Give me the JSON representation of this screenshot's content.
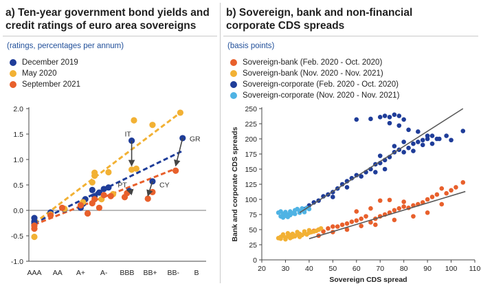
{
  "panel_a": {
    "title": "a) Ten-year government bond yields and\ncredit ratings of euro area sovereigns",
    "subtitle": "(ratings, percentages per annum)"
  },
  "panel_b": {
    "title": "b) Sovereign, bank and non-financial\ncorporate CDS spreads",
    "subtitle": "(basis points)"
  },
  "chart_data": [
    {
      "type": "scatter",
      "title": "a) Ten-year government bond yields and credit ratings of euro area sovereigns",
      "subtitle": "(ratings, percentages per annum)",
      "xlabel": "",
      "ylabel": "",
      "categories": [
        "AAA",
        "AA",
        "A+",
        "A-",
        "BBB",
        "BB+",
        "BB-",
        "B"
      ],
      "x_positions": [
        0,
        1,
        2,
        3,
        4,
        5,
        6,
        7
      ],
      "ylim": [
        -1.0,
        2.0
      ],
      "yticks": [
        -1.0,
        -0.5,
        0.0,
        0.5,
        1.0,
        1.5,
        2.0
      ],
      "legend_position": "top-left",
      "grid": false,
      "series": [
        {
          "name": "December 2019",
          "color": "#1f3d99",
          "points": [
            [
              0,
              -0.15
            ],
            [
              0,
              -0.22
            ],
            [
              0,
              -0.26
            ],
            [
              0.7,
              -0.04
            ],
            [
              0.7,
              -0.06
            ],
            [
              1.3,
              0.02
            ],
            [
              2,
              0.05
            ],
            [
              2.1,
              0.13
            ],
            [
              2.2,
              0.22
            ],
            [
              2.5,
              0.4
            ],
            [
              2.6,
              0.28
            ],
            [
              2.8,
              0.35
            ],
            [
              3.0,
              0.42
            ],
            [
              3.2,
              0.45
            ],
            [
              4.1,
              0.38
            ],
            [
              4.2,
              1.37
            ],
            [
              5.1,
              0.57
            ],
            [
              6.4,
              1.42
            ]
          ],
          "trend": {
            "x": [
              0,
              6.4
            ],
            "y": [
              -0.25,
              1.17
            ]
          }
        },
        {
          "name": "May 2020",
          "color": "#f2b134",
          "points": [
            [
              0,
              -0.52
            ],
            [
              0,
              -0.3
            ],
            [
              0.7,
              -0.08
            ],
            [
              1.3,
              0.03
            ],
            [
              2.1,
              0.16
            ],
            [
              2.5,
              0.55
            ],
            [
              2.6,
              0.68
            ],
            [
              2.6,
              0.74
            ],
            [
              2.9,
              0.22
            ],
            [
              3.2,
              0.75
            ],
            [
              3.4,
              0.32
            ],
            [
              4.2,
              0.8
            ],
            [
              4.3,
              1.77
            ],
            [
              4.4,
              0.82
            ],
            [
              5.1,
              1.68
            ],
            [
              6.3,
              1.92
            ]
          ],
          "trend": {
            "x": [
              0,
              6.3
            ],
            "y": [
              -0.25,
              1.92
            ]
          }
        },
        {
          "name": "September 2021",
          "color": "#e8602c",
          "points": [
            [
              0,
              -0.3
            ],
            [
              0,
              -0.36
            ],
            [
              0.7,
              -0.1
            ],
            [
              1.2,
              0.05
            ],
            [
              2.0,
              0.1
            ],
            [
              2.3,
              -0.06
            ],
            [
              2.5,
              0.14
            ],
            [
              2.6,
              0.22
            ],
            [
              2.8,
              0.05
            ],
            [
              3.0,
              0.3
            ],
            [
              3.3,
              0.28
            ],
            [
              3.9,
              0.26
            ],
            [
              4.0,
              0.34
            ],
            [
              4.9,
              0.23
            ],
            [
              5.1,
              0.36
            ],
            [
              6.1,
              0.78
            ]
          ],
          "trend": {
            "x": [
              0,
              6.1
            ],
            "y": [
              -0.28,
              0.82
            ]
          }
        }
      ],
      "annotations": [
        {
          "text": "IT",
          "x": 3.9,
          "y": 1.45
        },
        {
          "text": "GR",
          "x": 6.7,
          "y": 1.36
        },
        {
          "text": "PT",
          "x": 3.6,
          "y": 0.45
        },
        {
          "text": "CY",
          "x": 5.4,
          "y": 0.45
        }
      ],
      "arrows": [
        {
          "from": [
            4.2,
            1.37
          ],
          "to": [
            4.2,
            0.82
          ]
        },
        {
          "from": [
            6.4,
            1.42
          ],
          "to": [
            6.1,
            0.82
          ]
        },
        {
          "from": [
            4.1,
            0.38
          ],
          "to": [
            4.0,
            0.34
          ]
        },
        {
          "from": [
            5.1,
            0.57
          ],
          "to": [
            4.9,
            0.23
          ]
        }
      ]
    },
    {
      "type": "scatter",
      "title": "b) Sovereign, bank and non-financial corporate CDS spreads",
      "subtitle": "(basis points)",
      "xlabel": "Sovereign CDS spread",
      "ylabel": "Bank and corporate CDS spreads",
      "xlim": [
        20,
        110
      ],
      "ylim": [
        0,
        250
      ],
      "xticks": [
        20,
        30,
        40,
        50,
        60,
        70,
        80,
        90,
        100,
        110
      ],
      "yticks": [
        0,
        25,
        50,
        75,
        100,
        125,
        150,
        175,
        200,
        225,
        250
      ],
      "legend_position": "top-left",
      "grid": false,
      "series": [
        {
          "name": "Sovereign-bank (Feb. 2020 - Oct. 2020)",
          "color": "#e8602c",
          "points": [
            [
              35,
              42
            ],
            [
              38,
              44
            ],
            [
              40,
              45
            ],
            [
              42,
              48
            ],
            [
              44,
              50
            ],
            [
              46,
              47
            ],
            [
              48,
              52
            ],
            [
              50,
              55
            ],
            [
              52,
              55
            ],
            [
              54,
              58
            ],
            [
              56,
              60
            ],
            [
              58,
              63
            ],
            [
              60,
              65
            ],
            [
              62,
              68
            ],
            [
              64,
              72
            ],
            [
              66,
              62
            ],
            [
              68,
              68
            ],
            [
              70,
              72
            ],
            [
              72,
              75
            ],
            [
              74,
              78
            ],
            [
              76,
              82
            ],
            [
              78,
              85
            ],
            [
              80,
              88
            ],
            [
              82,
              86
            ],
            [
              84,
              90
            ],
            [
              86,
              92
            ],
            [
              88,
              95
            ],
            [
              90,
              100
            ],
            [
              92,
              104
            ],
            [
              94,
              108
            ],
            [
              96,
              118
            ],
            [
              98,
              110
            ],
            [
              100,
              115
            ],
            [
              102,
              120
            ],
            [
              105,
              128
            ],
            [
              60,
              80
            ],
            [
              66,
              85
            ],
            [
              70,
              98
            ],
            [
              74,
              99
            ],
            [
              80,
              96
            ],
            [
              44,
              40
            ],
            [
              50,
              46
            ],
            [
              56,
              50
            ],
            [
              62,
              56
            ],
            [
              68,
              58
            ],
            [
              76,
              66
            ],
            [
              84,
              72
            ],
            [
              90,
              78
            ],
            [
              96,
              92
            ]
          ]
        },
        {
          "name": "Sovereign-bank (Nov. 2020 - Nov. 2021)",
          "color": "#f2b134",
          "points": [
            [
              27,
              36
            ],
            [
              28,
              38
            ],
            [
              29,
              40
            ],
            [
              30,
              37
            ],
            [
              31,
              39
            ],
            [
              32,
              41
            ],
            [
              33,
              38
            ],
            [
              34,
              40
            ],
            [
              35,
              42
            ],
            [
              36,
              43
            ],
            [
              37,
              41
            ],
            [
              38,
              44
            ],
            [
              39,
              42
            ],
            [
              40,
              45
            ],
            [
              41,
              46
            ],
            [
              42,
              47
            ],
            [
              43,
              48
            ],
            [
              44,
              50
            ],
            [
              45,
              52
            ],
            [
              28,
              35
            ],
            [
              30,
              34
            ],
            [
              32,
              36
            ],
            [
              34,
              39
            ],
            [
              36,
              38
            ],
            [
              29,
              42
            ],
            [
              31,
              44
            ],
            [
              33,
              43
            ],
            [
              35,
              46
            ],
            [
              38,
              47
            ],
            [
              40,
              49
            ]
          ]
        },
        {
          "name": "Sovereign-corporate (Feb. 2020 - Oct. 2020)",
          "color": "#1f3d99",
          "points": [
            [
              36,
              80
            ],
            [
              38,
              84
            ],
            [
              40,
              90
            ],
            [
              42,
              95
            ],
            [
              44,
              98
            ],
            [
              46,
              105
            ],
            [
              48,
              108
            ],
            [
              50,
              112
            ],
            [
              52,
              118
            ],
            [
              54,
              125
            ],
            [
              56,
              130
            ],
            [
              58,
              135
            ],
            [
              60,
              140
            ],
            [
              62,
              138
            ],
            [
              64,
              145
            ],
            [
              66,
              150
            ],
            [
              68,
              158
            ],
            [
              70,
              160
            ],
            [
              72,
              165
            ],
            [
              74,
              170
            ],
            [
              76,
              178
            ],
            [
              78,
              182
            ],
            [
              80,
              178
            ],
            [
              82,
              185
            ],
            [
              84,
              192
            ],
            [
              86,
              195
            ],
            [
              88,
              198
            ],
            [
              90,
              200
            ],
            [
              92,
              205
            ],
            [
              95,
              200
            ],
            [
              98,
              205
            ],
            [
              100,
              198
            ],
            [
              105,
              213
            ],
            [
              60,
              232
            ],
            [
              66,
              233
            ],
            [
              70,
              236
            ],
            [
              72,
              238
            ],
            [
              74,
              236
            ],
            [
              76,
              240
            ],
            [
              78,
              238
            ],
            [
              80,
              232
            ],
            [
              74,
              226
            ],
            [
              78,
              222
            ],
            [
              82,
              215
            ],
            [
              86,
              212
            ],
            [
              90,
              205
            ],
            [
              94,
              200
            ],
            [
              70,
              172
            ],
            [
              76,
              188
            ],
            [
              80,
              195
            ],
            [
              84,
              180
            ],
            [
              88,
              190
            ],
            [
              92,
              192
            ],
            [
              68,
              145
            ],
            [
              72,
              150
            ],
            [
              56,
              120
            ],
            [
              50,
              104
            ]
          ]
        },
        {
          "name": "Sovereign-corporate (Nov. 2020 - Nov. 2021)",
          "color": "#4fb3e4",
          "points": [
            [
              27,
              78
            ],
            [
              28,
              80
            ],
            [
              29,
              76
            ],
            [
              30,
              79
            ],
            [
              31,
              75
            ],
            [
              32,
              80
            ],
            [
              33,
              77
            ],
            [
              34,
              82
            ],
            [
              35,
              84
            ],
            [
              36,
              80
            ],
            [
              37,
              85
            ],
            [
              38,
              82
            ],
            [
              39,
              86
            ],
            [
              40,
              84
            ],
            [
              28,
              72
            ],
            [
              30,
              73
            ],
            [
              32,
              74
            ],
            [
              34,
              76
            ],
            [
              36,
              78
            ],
            [
              38,
              79
            ],
            [
              29,
              70
            ],
            [
              31,
              71
            ]
          ]
        }
      ],
      "trendlines": [
        {
          "x": [
            40,
            106
          ],
          "y": [
            35,
            113
          ]
        },
        {
          "x": [
            36,
            105
          ],
          "y": [
            78,
            250
          ]
        }
      ]
    }
  ]
}
